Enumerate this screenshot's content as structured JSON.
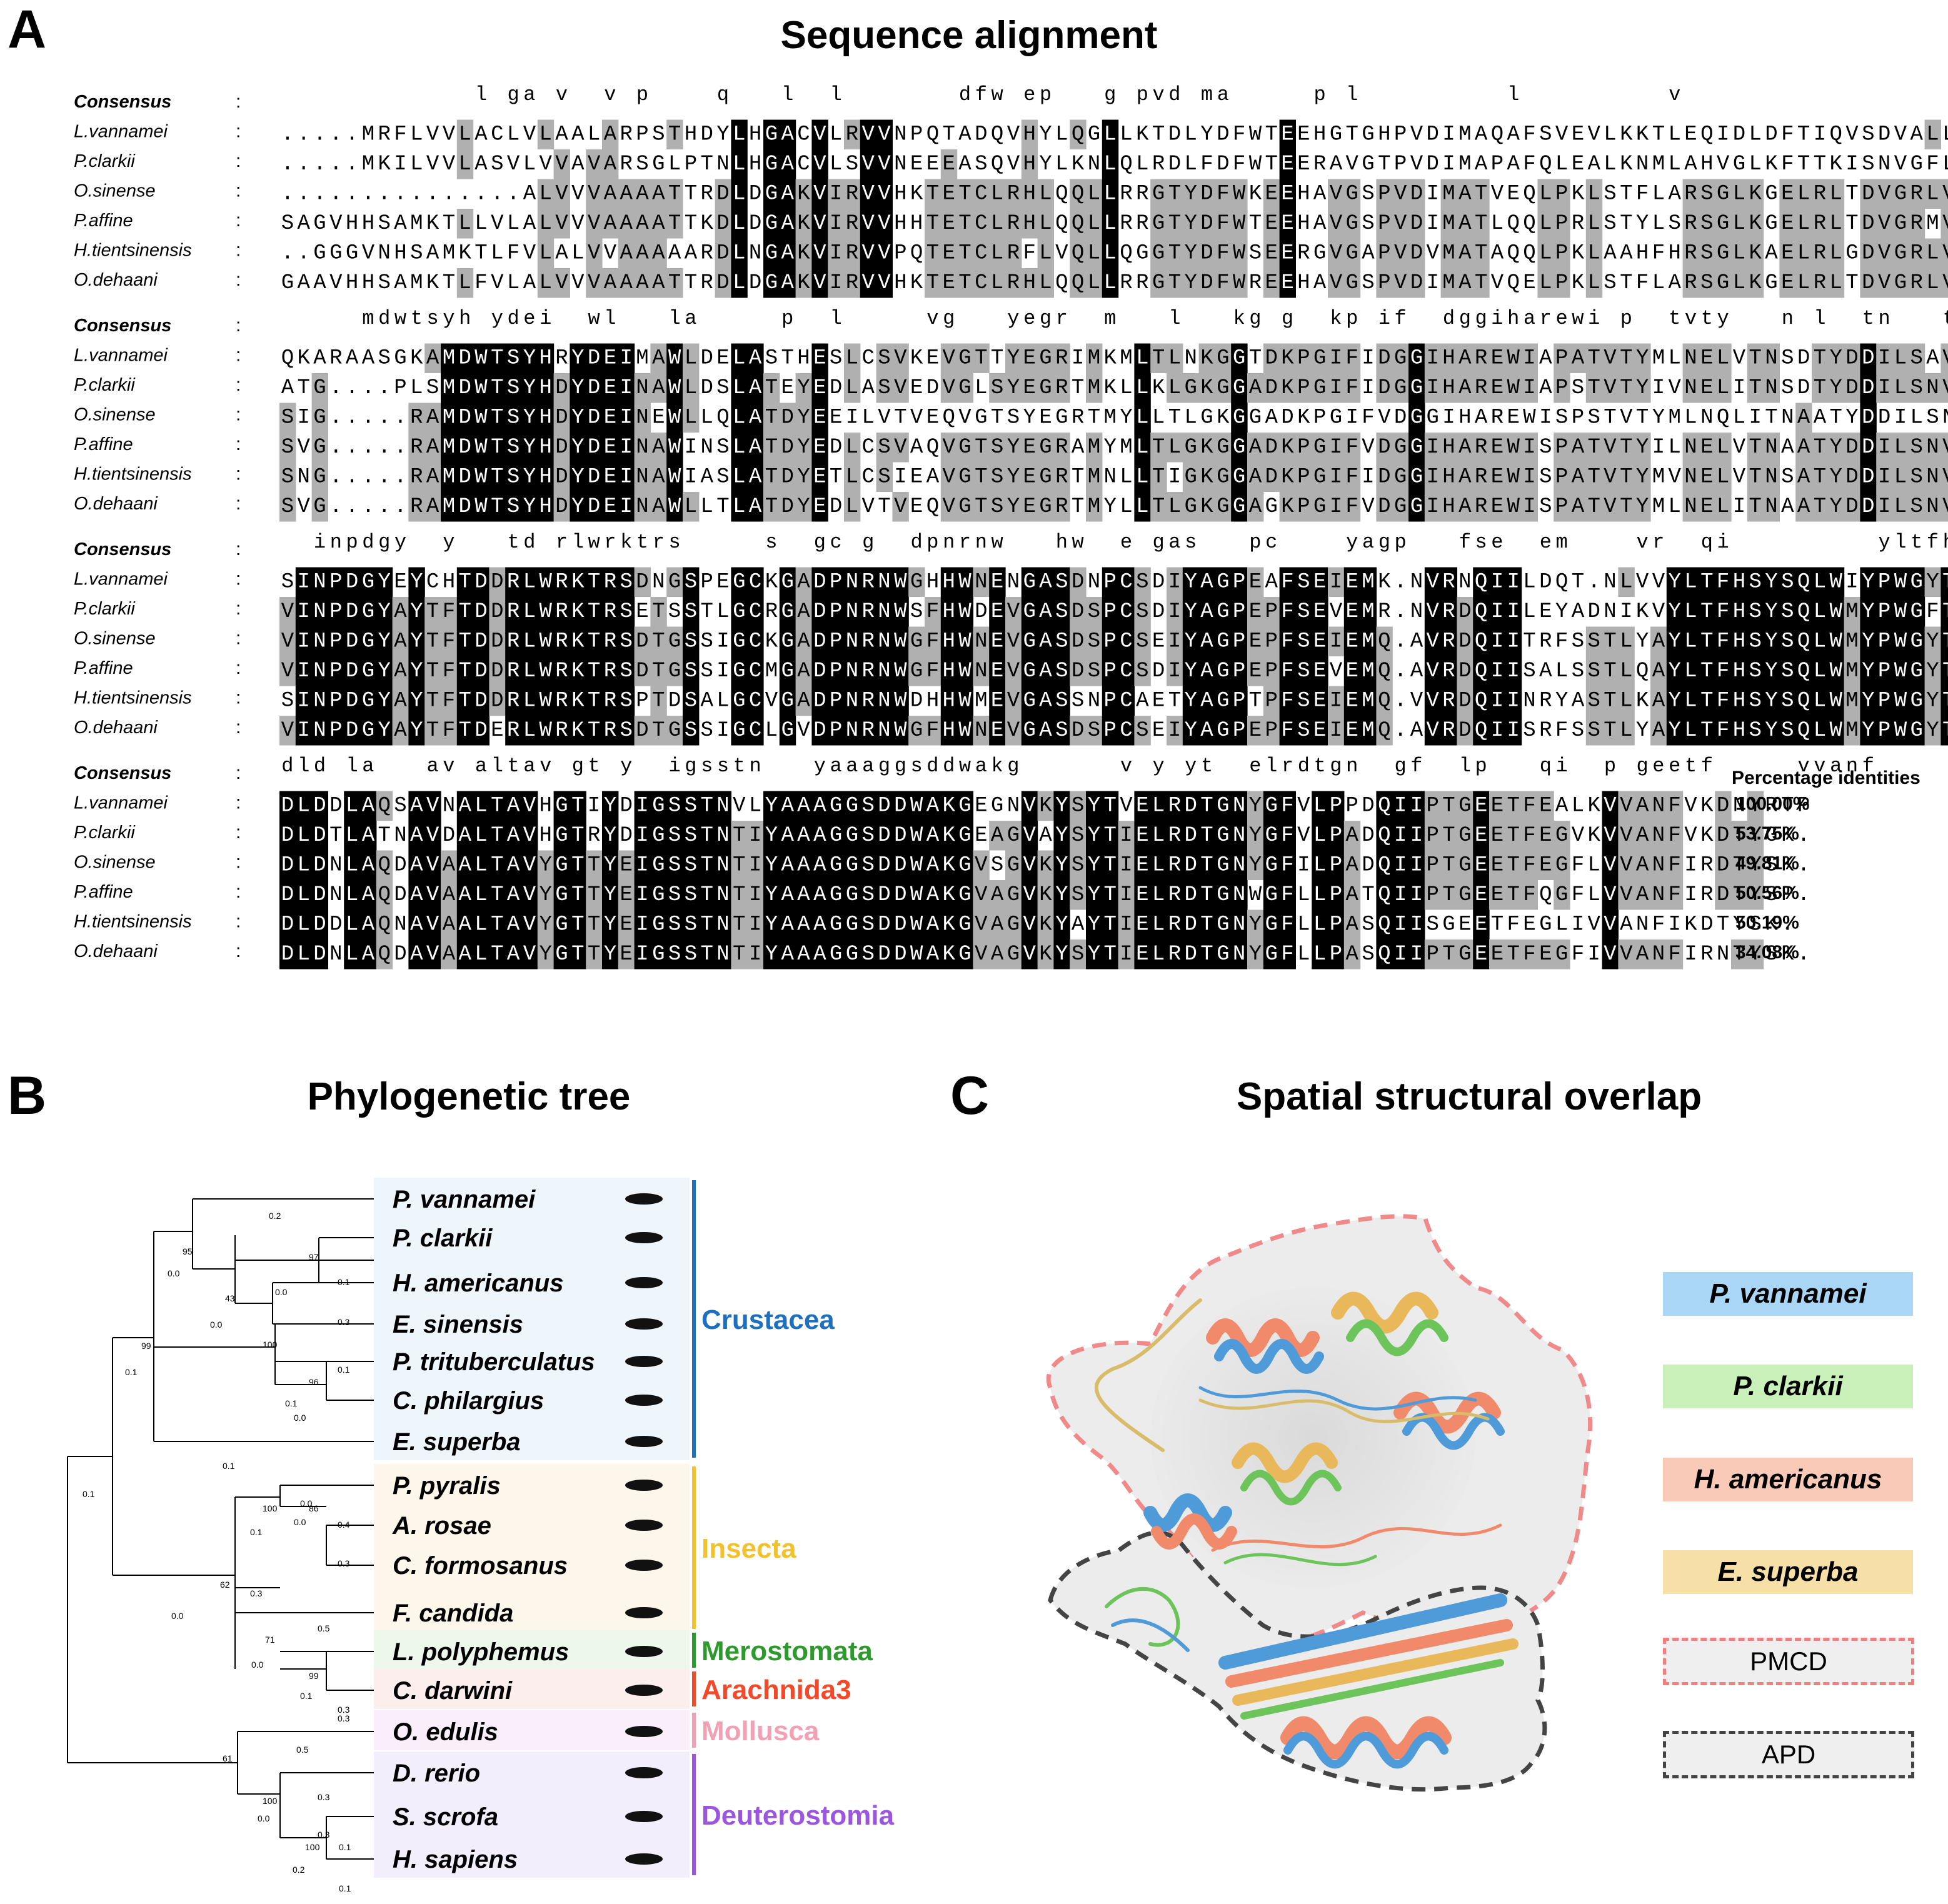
{
  "panels": {
    "a": {
      "letter": "A",
      "title": "Sequence alignment"
    },
    "b": {
      "letter": "B",
      "title": "Phylogenetic tree"
    },
    "c": {
      "letter": "C",
      "title": "Spatial structural overlap"
    }
  },
  "alignment": {
    "consensus_label": "Consensus",
    "separator": ":",
    "pct_header": "Percentage identities",
    "species": [
      "L.vannamei",
      "P.clarkii",
      "O.sinense",
      "P.affine",
      "H.tientsinensis",
      "O.dehaani"
    ],
    "percentages": [
      "100.00%",
      "53.75%",
      "49.81%",
      "50.56%",
      "50.19%",
      "34.08%"
    ],
    "blocks": [
      {
        "consensus": "            l ga v  v p    q   l  l       dfw ep   g pvd ma     p l         l         v      ",
        "rows": [
          ".....MRFLVVLACLVLAALARPSTHDYLHGACVLRVVNPQTADQVHYLQGLLKTDLYDFWTEEHGTGHPVDIMAQAFSVEVLKKTLEQIDLDFTIQVSDVALLLAKIREAN",
          ".....MKILVVLASVLVVAVARSGLPTNLHGACVLSVVNEEEASQVHYLKNLQLRDLFDFWTEERAVGTPVDIMAPAFQLEALKNMLAHVGLKFTTKISNVGFLVDQQKAAR",
          "...............ALVVVAAAATTRDLDGAKVIRVVHKTETCLRHLQQLLRRGTYDFWKEEHAVGSPVDIMATVEQLPKLSTFLARSGLKGELRLTDVGRLVKEQASER",
          "SAGVHHSAMKTLLVLALVVVAAAATTKDLDGAKVIRVVHHTETCLRHLQQLLRRGTYDFWTEEHAVGSPVDIMATLQQLPRLSTYLSRSGLKGELRLTDVGRMVKEQASER",
          "..GGGVNHSAMKTLFVLALVVAAAAARDLNGAKVIRVVPQTETCLRFLVQLLQGGTYDFWSEERGVGAPVDVMATAQQLPKLAAHFHRSGLKAELRLGDVGRLVEEQKKER",
          "GAAVHHSAMKTLFVLALVVVAAAATTRDLDGAKVIRVVHKTETCLRHLQQLLRRGTYDFWREEHAVGSPVDIMATVQELPKLSTFLARSGLKGELRLTDVGRLVKEQASER"
        ]
      },
      {
        "consensus": "     mdwtsyh ydei  wl   la     p  l     vg   yegr  m   l   kg g  kp if  dggiharewi p  tvty   n l  tn   tydd  ls  vn  y m",
        "rows": [
          "QKARAASGKAMDWTSYHRYDEIMAWLDELASTHESLCSVKEVGTTYEGRIMKMLTLNKGGTDKPGIFIDGGIHAREWIAPATVTYMLNELVTNSDTYDDILSAVNFYVMP",
          "ATG....PLSMDWTSYHDYDEINAWLDSLATEYEDLASVEDVGLSYEGRTMKLLKLGKGGADKPGIFIDGGIHAREWIAPSTVTYIVNELITNSDTYDDILSNVNFYVMP",
          "SIG.....RAMDWTSYHDYDEINEWLLQLATDYEEILVTVEQVGTSYEGRTMYLLTLGKGGADKPGIFVDGGIHAREWISPSTVTYMLNQLITNAATYDDILSNVNFYFMP",
          "SVG.....RAMDWTSYHDYDEINAWINSLATDYEDLCSVAQVGTSYEGRAMYMLTLGKGGADKPGIFVDGGIHAREWISPATVTYILNELVTNAATYDDILSNVNIYFMP",
          "SNG.....RAMDWTSYHDYDEINAWIASLATDYETLCSIEAVGTSYEGRTMNLLTIGKGGADKPGIFIDGGIHAREWISPATVTYMVNELVTNSATYDDILSNVNFYVMA",
          "SVG.....RAMDWTSYHDYDEINAWLLTLATDYEDLVTVEQVGTSYEGRTMYLLTLGKGGAGKPGIFVDGGIHAREWISPATVTYMLNELITNAATYDDILSNVNFYFMP"
        ]
      },
      {
        "consensus": "  inpdgy  y   td rlwrktrs     s  gc g  dpnrnw   hw  e gas   pc    yagp   fse  em    vr  qi         yltfhsysqlw  ypwg  ts  lp  dwq",
        "rows": [
          "SINPDGYEYCHTDDRLWRKTRSDNGSPEGCKGADPNRNWGHHWNENGASDNPCSDIYAGPEAFSEIEMK.NVRNQIILDQT.NLVVYLTFHSYSQLWIYPWGYTSALPEDWQ",
          "VINPDGYAYTFTDDRLWRKTRSETSSTLGCRGADPNRNWSFHWDEVGASDSPCSDIYAGPEPFSEVEMR.NVRDQIILEYADNIKVYLTFHSYSQLWMYPWGFTSDLPDDWQ",
          "VINPDGYAYTFTDDRLWRKTRSDTGSSIGCKGADPNRNWGFHWNEVGASDSPCSEIYAGPEPFSEIEMQ.AVRDQIITRFSSTLYAYLTFHSYSQLWMYPWGYTSALPDDWQ",
          "VINPDGYAYTFTDDRLWRKTRSDTGSSIGCMGADPNRNWGFHWNEVGASDSPCSDIYAGPEPFSEVEMQ.AVRDQIISALSSTLQAYLTFHSYSQLWMYPWGYTSDLPADWQ",
          "SINPDGYAYTFTDDRLWRKTRSPTDSALGCVGADPNRNWDHHWMEVGASSNPCAETYAGPTPFSEIEMQ.VVRDQIINRYASTLKAYLTFHSYSQLWMYPWGYTSALPDDWQ",
          "VINPDGYAYTFTDERLWRKTRSDTGSSIGCLGVDPNRNWGFHWNEVGASDSPCSEIYAGPEPFSEIEMQ.AVRDQIISRFSSTLYAYLTFHSYSQLWMYPWGYTSDLPADWQ"
        ]
      },
      {
        "consensus": "dld la   av altav gt y  igsstn   yaaaggsddwakg      v y yt  elrdtgn  gf  lp   qi  p geetf     vvanf     y   ",
        "rows": [
          "DLDDLAQSAVNALTAVHGTIYDIGSSTNVLYAAAGGSDDWAKGEGNVKYSYTVELRDTGNYGFVLPPDQIIPTGEETFEALKVVANFVKDNYRTP",
          "DLDTLATNAVDALTAVHGTRYDIGSSTNTIYAAAGGSDDWAKGEAGVAYSYTIELRDTGNYGFVLPADQIIPTGEETFEGVKVVANFVKDTYGK.",
          "DLDNLAQDAVAALTAVYGTTYEIGSSTNTIYAAAGGSDDWAKGVSGVKYSYTIELRDTGNYGFILPADQIIPTGEETFEGFLVVANFIRDTYSK.",
          "DLDNLAQDAVAALTAVYGTTYEIGSSTNTIYAAAGGSDDWAKGVAGVKYSYTIELRDTGNWGFLLPATQIIPTGEETFQGFLVVANFIRDTYSP.",
          "DLDDLAQNAVAALTAVYGTTYEIGSSTNTIYAAAGGSDDWAKGVAGVKYAYTIELRDTGNYGFLLPASQIISGEETFEGLIVVANFIKDTYSK.",
          "DLDNLAQDAVAALTAVYGTTYEIGSSTNTIYAAAGGSDDWAKGVAGVKYSYTIELRDTGNYGFLLPASQIIPTGEETFEGFIVVANFIRNTYSK."
        ]
      }
    ]
  },
  "tree": {
    "taxa": [
      "P. vannamei",
      "P. clarkii",
      "H. americanus",
      "E. sinensis",
      "P. trituberculatus",
      "C. philargius",
      "E. superba",
      "P. pyralis",
      "A. rosae",
      "C. formosanus",
      "F. candida",
      "L. polyphemus",
      "C. darwini",
      "O. edulis",
      "D. rerio",
      "S. scrofa",
      "H. sapiens"
    ],
    "groups": [
      {
        "name": "Crustacea",
        "color": "#1f6fbf"
      },
      {
        "name": "Insecta",
        "color": "#f2c12e"
      },
      {
        "name": "Merostomata",
        "color": "#2e9a2e"
      },
      {
        "name": "Arachnida3",
        "color": "#f04a2a"
      },
      {
        "name": "Mollusca",
        "color": "#f2a0b4"
      },
      {
        "name": "Deuterostomia",
        "color": "#9b55e0"
      }
    ],
    "labels": [
      "0.2",
      "95",
      "0.0",
      "97",
      "0.1",
      "0.0",
      "0.3",
      "43",
      "0.0",
      "100",
      "0.1",
      "99",
      "0.1",
      "0.1",
      "96",
      "0.0",
      "0.1",
      "0.1",
      "0.0",
      "86",
      "0.4",
      "100",
      "0.0",
      "0.3",
      "0.1",
      "62",
      "0.3",
      "0.0",
      "71",
      "0.5",
      "0.0",
      "99",
      "0.3",
      "0.1",
      "0.3",
      "61",
      "0.5",
      "100",
      "0.3",
      "0.0",
      "0.3",
      "100",
      "0.1",
      "0.2",
      "0.1"
    ]
  },
  "structure": {
    "legend": [
      {
        "label": "P. vannamei",
        "color": "#a9d6f5"
      },
      {
        "label": "P. clarkii",
        "color": "#c8f0b8"
      },
      {
        "label": "H. americanus",
        "color": "#f9c9b8"
      },
      {
        "label": "E. superba",
        "color": "#f7dfa8"
      }
    ],
    "domains": [
      {
        "label": "PMCD",
        "color": "#f08080"
      },
      {
        "label": "APD",
        "color": "#444444"
      }
    ]
  }
}
